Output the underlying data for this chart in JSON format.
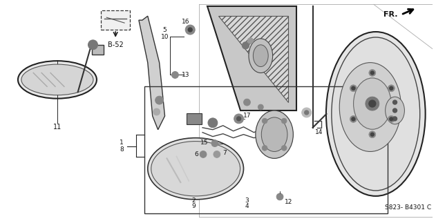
{
  "diagram_ref": "S823- B4301 C",
  "direction_label": "FR.",
  "bg": "#ffffff",
  "figsize": [
    6.31,
    3.2
  ],
  "dpi": 100
}
